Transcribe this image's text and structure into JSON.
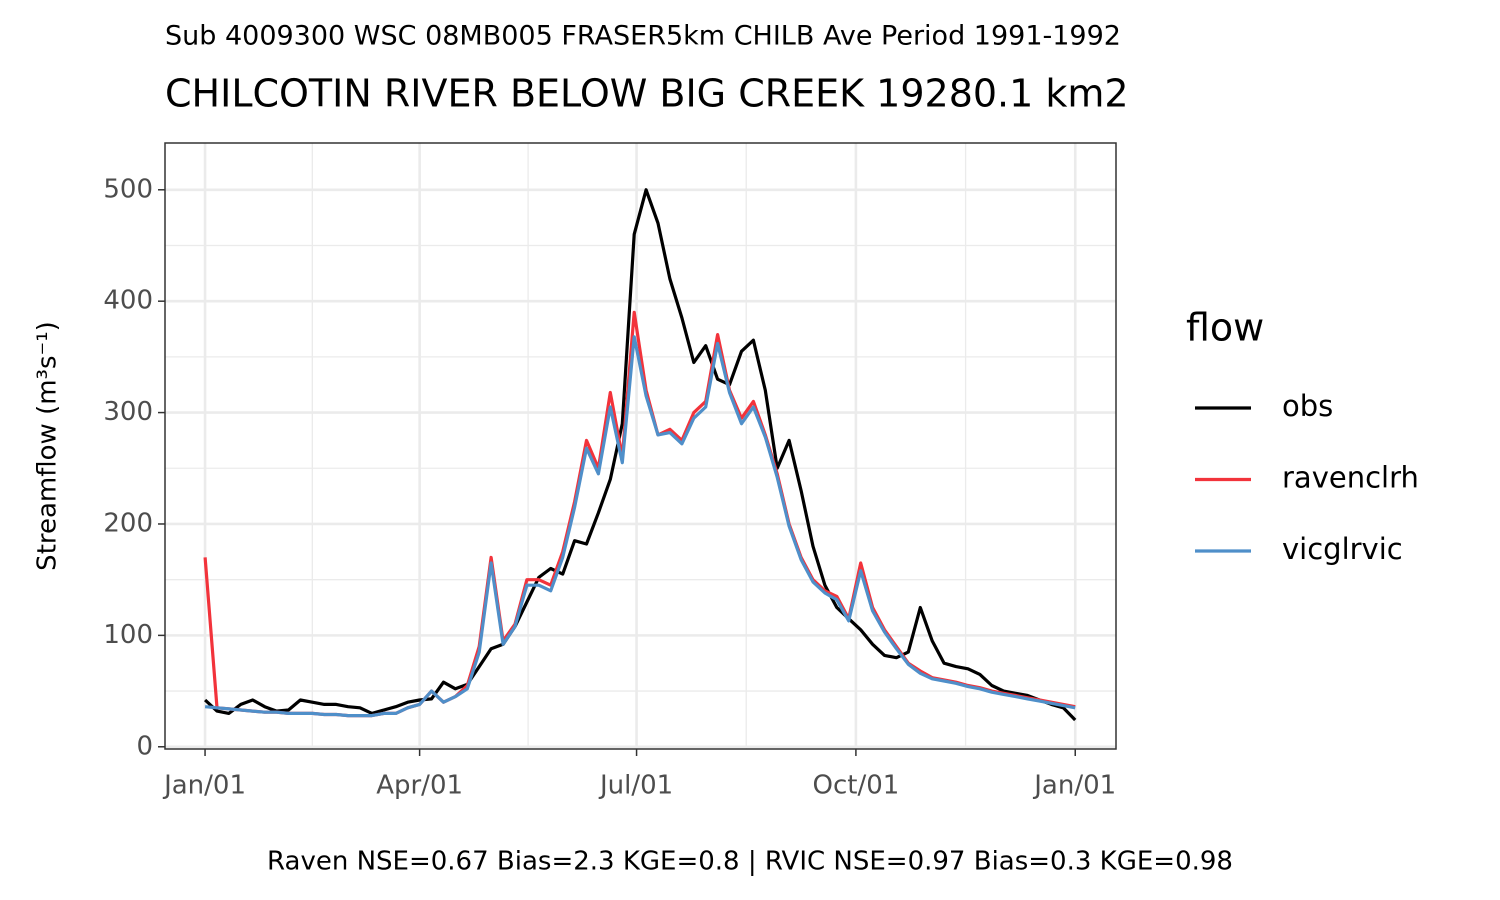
{
  "chart_data": {
    "type": "line",
    "subtitle": "Sub 4009300 WSC 08MB005 FRASER5km CHILB Ave Period 1991-1992",
    "title": "CHILCOTIN RIVER BELOW BIG CREEK 19280.1 km2",
    "y_label": "Streamflow (m³s⁻¹)",
    "caption": "Raven NSE=0.67 Bias=2.3 KGE=0.8 | RVIC NSE=0.97 Bias=0.3 KGE=0.98",
    "legend_title": "flow",
    "legend": "right",
    "grid": true,
    "xlim": [
      -16.8,
      382.1
    ],
    "ylim": [
      -2,
      542
    ],
    "xticks": [
      {
        "value": 0,
        "label": "Jan/01"
      },
      {
        "value": 90,
        "label": "Apr/01"
      },
      {
        "value": 181,
        "label": "Jul/01"
      },
      {
        "value": 273,
        "label": "Oct/01"
      },
      {
        "value": 365,
        "label": "Jan/01"
      }
    ],
    "x_minor_ticks": [
      45,
      135.5,
      227,
      319
    ],
    "yticks": [
      0,
      100,
      200,
      300,
      400,
      500
    ],
    "y_minor_ticks": [
      50,
      150,
      250,
      350,
      450
    ],
    "x": [
      0,
      5,
      10,
      15,
      20,
      25,
      30,
      35,
      40,
      45,
      50,
      55,
      60,
      65,
      70,
      75,
      80,
      85,
      90,
      95,
      100,
      105,
      110,
      115,
      120,
      125,
      130,
      135,
      140,
      145,
      150,
      155,
      160,
      165,
      170,
      175,
      180,
      185,
      190,
      195,
      200,
      205,
      210,
      215,
      220,
      225,
      230,
      235,
      240,
      245,
      250,
      255,
      260,
      265,
      270,
      275,
      280,
      285,
      290,
      295,
      300,
      305,
      310,
      315,
      320,
      325,
      330,
      335,
      340,
      345,
      350,
      355,
      360,
      365
    ],
    "series": [
      {
        "name": "obs",
        "color": "#000000",
        "values": [
          42,
          32,
          30,
          38,
          42,
          36,
          32,
          33,
          42,
          40,
          38,
          38,
          36,
          35,
          30,
          33,
          36,
          40,
          42,
          43,
          58,
          52,
          56,
          72,
          88,
          92,
          108,
          130,
          152,
          160,
          155,
          185,
          182,
          210,
          240,
          290,
          460,
          500,
          470,
          420,
          385,
          345,
          360,
          330,
          325,
          355,
          365,
          320,
          250,
          275,
          230,
          180,
          145,
          125,
          115,
          105,
          92,
          82,
          80,
          85,
          125,
          95,
          75,
          72,
          70,
          65,
          55,
          50,
          48,
          46,
          42,
          38,
          35,
          24
        ]
      },
      {
        "name": "ravenclrh",
        "color": "#f2333b",
        "values": [
          170,
          35,
          34,
          33,
          32,
          31,
          31,
          30,
          30,
          30,
          29,
          29,
          28,
          28,
          28,
          30,
          30,
          35,
          38,
          50,
          40,
          45,
          55,
          90,
          170,
          95,
          110,
          150,
          150,
          145,
          175,
          220,
          275,
          250,
          318,
          260,
          390,
          320,
          280,
          285,
          275,
          300,
          310,
          370,
          320,
          295,
          310,
          280,
          245,
          200,
          170,
          150,
          140,
          135,
          115,
          165,
          125,
          105,
          90,
          75,
          68,
          62,
          60,
          58,
          55,
          53,
          50,
          48,
          46,
          44,
          42,
          40,
          38,
          36
        ]
      },
      {
        "name": "vicglrvic",
        "color": "#4f8fc9",
        "values": [
          36,
          35,
          34,
          33,
          32,
          31,
          31,
          30,
          30,
          30,
          29,
          29,
          28,
          28,
          28,
          30,
          30,
          35,
          38,
          50,
          40,
          45,
          52,
          85,
          165,
          92,
          108,
          145,
          145,
          140,
          170,
          215,
          268,
          245,
          305,
          255,
          368,
          315,
          280,
          282,
          272,
          295,
          305,
          362,
          318,
          290,
          305,
          278,
          242,
          198,
          168,
          148,
          138,
          132,
          113,
          158,
          122,
          103,
          88,
          74,
          66,
          61,
          59,
          57,
          54,
          52,
          49,
          47,
          45,
          43,
          41,
          39,
          37,
          35
        ]
      }
    ]
  }
}
